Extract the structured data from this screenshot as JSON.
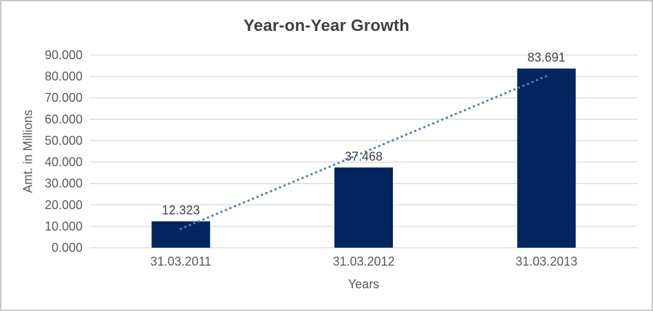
{
  "window": {
    "background": "#ffffff",
    "border_color": "#c8c8c8"
  },
  "chart_data": {
    "type": "bar",
    "title": "Year-on-Year Growth",
    "xlabel": "Years",
    "ylabel": "Amt. in Millions",
    "categories": [
      "31.03.2011",
      "31.03.2012",
      "31.03.2013"
    ],
    "values": [
      12.323,
      37.468,
      83.691
    ],
    "data_labels": [
      "12.323",
      "37.468",
      "83.691"
    ],
    "ylim": [
      0,
      90
    ],
    "ytick_step": 10,
    "ytick_labels": [
      "0.000",
      "10.000",
      "20.000",
      "30.000",
      "40.000",
      "50.000",
      "60.000",
      "70.000",
      "80.000",
      "90.000"
    ],
    "grid": true,
    "legend": "none",
    "trendline": {
      "type": "linear",
      "style": "dotted",
      "color": "#4f81bd"
    },
    "colors": {
      "bar": "#02245f",
      "gridline": "#d9d9d9",
      "title_text": "#404040",
      "axis_text": "#595959",
      "data_label_text": "#404040"
    }
  }
}
